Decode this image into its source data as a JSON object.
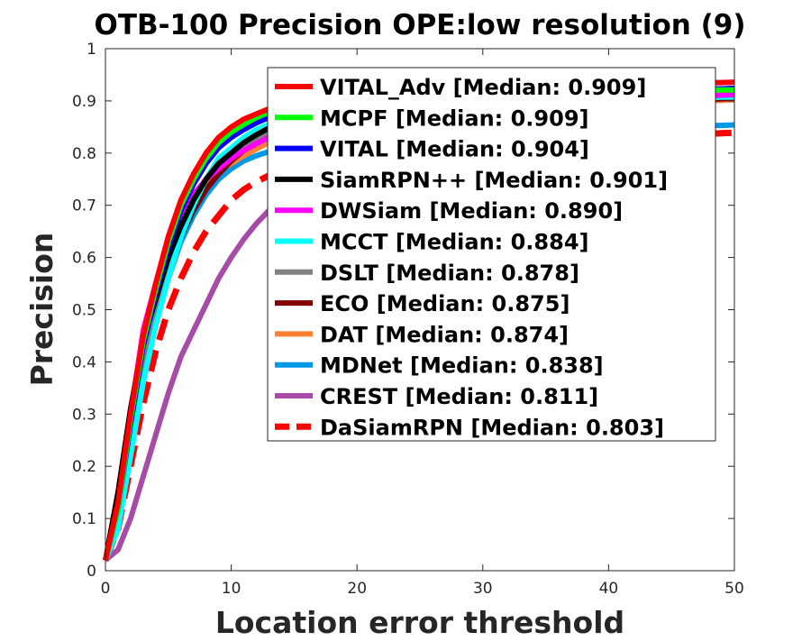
{
  "chart_data": {
    "type": "line",
    "title": "OTB-100 Precision OPE:low resolution (9)",
    "xlabel": "Location error threshold",
    "ylabel": "Precision",
    "xlim": [
      0,
      50
    ],
    "ylim": [
      0,
      1
    ],
    "xticks": [
      "0",
      "10",
      "20",
      "30",
      "40",
      "50"
    ],
    "yticks": [
      "0",
      "0.1",
      "0.2",
      "0.3",
      "0.4",
      "0.5",
      "0.6",
      "0.7",
      "0.8",
      "0.9",
      "1"
    ],
    "grid": false,
    "legend_position": "top-right",
    "x": [
      0,
      1,
      2,
      3,
      4,
      5,
      6,
      7,
      8,
      9,
      10,
      11,
      12,
      13,
      14,
      15,
      16,
      17,
      18,
      19,
      20,
      21,
      22,
      23,
      24,
      25,
      26,
      27,
      28,
      29,
      30,
      31,
      32,
      33,
      34,
      35,
      36,
      37,
      38,
      39,
      40,
      41,
      42,
      43,
      44,
      45,
      46,
      47,
      48,
      49,
      50
    ],
    "series": [
      {
        "name": "VITAL_Adv [Median: 0.909]",
        "color": "#ff0000",
        "dashed": false,
        "values": [
          0.02,
          0.13,
          0.3,
          0.45,
          0.55,
          0.64,
          0.71,
          0.76,
          0.8,
          0.83,
          0.85,
          0.865,
          0.875,
          0.885,
          0.89,
          0.895,
          0.9,
          0.903,
          0.906,
          0.908,
          0.91,
          0.912,
          0.913,
          0.914,
          0.915,
          0.916,
          0.917,
          0.918,
          0.919,
          0.92,
          0.921,
          0.922,
          0.923,
          0.924,
          0.925,
          0.926,
          0.927,
          0.928,
          0.929,
          0.93,
          0.93,
          0.931,
          0.931,
          0.932,
          0.932,
          0.933,
          0.933,
          0.934,
          0.935,
          0.935,
          0.936
        ]
      },
      {
        "name": "MCPF [Median: 0.909]",
        "color": "#00ff00",
        "dashed": false,
        "values": [
          0.02,
          0.12,
          0.29,
          0.44,
          0.54,
          0.63,
          0.7,
          0.75,
          0.79,
          0.82,
          0.84,
          0.855,
          0.868,
          0.878,
          0.885,
          0.89,
          0.895,
          0.898,
          0.901,
          0.903,
          0.905,
          0.906,
          0.907,
          0.908,
          0.909,
          0.91,
          0.911,
          0.912,
          0.912,
          0.913,
          0.913,
          0.914,
          0.914,
          0.915,
          0.915,
          0.916,
          0.916,
          0.917,
          0.917,
          0.918,
          0.918,
          0.918,
          0.919,
          0.919,
          0.919,
          0.92,
          0.92,
          0.92,
          0.921,
          0.921,
          0.921
        ]
      },
      {
        "name": "VITAL [Median: 0.904]",
        "color": "#0000ff",
        "dashed": false,
        "values": [
          0.02,
          0.12,
          0.28,
          0.43,
          0.53,
          0.62,
          0.69,
          0.74,
          0.78,
          0.81,
          0.83,
          0.845,
          0.858,
          0.868,
          0.875,
          0.88,
          0.885,
          0.889,
          0.892,
          0.895,
          0.897,
          0.899,
          0.9,
          0.901,
          0.902,
          0.903,
          0.904,
          0.905,
          0.906,
          0.907,
          0.908,
          0.909,
          0.91,
          0.911,
          0.912,
          0.913,
          0.914,
          0.915,
          0.916,
          0.917,
          0.918,
          0.919,
          0.92,
          0.92,
          0.921,
          0.921,
          0.922,
          0.922,
          0.923,
          0.923,
          0.924
        ]
      },
      {
        "name": "SiamRPN++ [Median: 0.901]",
        "color": "#000000",
        "dashed": false,
        "values": [
          0.02,
          0.15,
          0.31,
          0.44,
          0.52,
          0.6,
          0.66,
          0.71,
          0.75,
          0.78,
          0.8,
          0.82,
          0.835,
          0.848,
          0.858,
          0.866,
          0.872,
          0.877,
          0.881,
          0.885,
          0.888,
          0.891,
          0.893,
          0.895,
          0.897,
          0.899,
          0.9,
          0.901,
          0.902,
          0.903,
          0.904,
          0.905,
          0.906,
          0.907,
          0.908,
          0.909,
          0.91,
          0.911,
          0.912,
          0.913,
          0.914,
          0.915,
          0.916,
          0.917,
          0.918,
          0.919,
          0.92,
          0.921,
          0.922,
          0.923,
          0.924
        ]
      },
      {
        "name": "DWSiam [Median: 0.890]",
        "color": "#ff00ff",
        "dashed": false,
        "values": [
          0.02,
          0.12,
          0.3,
          0.46,
          0.55,
          0.63,
          0.68,
          0.72,
          0.75,
          0.77,
          0.79,
          0.805,
          0.818,
          0.83,
          0.84,
          0.848,
          0.855,
          0.861,
          0.866,
          0.87,
          0.874,
          0.877,
          0.88,
          0.882,
          0.884,
          0.886,
          0.888,
          0.889,
          0.89,
          0.891,
          0.892,
          0.893,
          0.894,
          0.895,
          0.896,
          0.897,
          0.898,
          0.899,
          0.9,
          0.901,
          0.902,
          0.903,
          0.904,
          0.905,
          0.906,
          0.907,
          0.908,
          0.909,
          0.91,
          0.911,
          0.912
        ]
      },
      {
        "name": "MCCT [Median: 0.884]",
        "color": "#00ffff",
        "dashed": false,
        "values": [
          0.02,
          0.08,
          0.22,
          0.36,
          0.47,
          0.56,
          0.64,
          0.7,
          0.75,
          0.79,
          0.81,
          0.83,
          0.845,
          0.855,
          0.862,
          0.868,
          0.873,
          0.877,
          0.88,
          0.883,
          0.885,
          0.887,
          0.889,
          0.89,
          0.891,
          0.892,
          0.893,
          0.894,
          0.895,
          0.896,
          0.897,
          0.898,
          0.899,
          0.9,
          0.9,
          0.901,
          0.901,
          0.902,
          0.902,
          0.903,
          0.903,
          0.904,
          0.904,
          0.905,
          0.905,
          0.905,
          0.906,
          0.906,
          0.906,
          0.907,
          0.907
        ]
      },
      {
        "name": "DSLT [Median: 0.878]",
        "color": "#808080",
        "dashed": false,
        "values": [
          0.02,
          0.12,
          0.27,
          0.41,
          0.51,
          0.59,
          0.66,
          0.71,
          0.75,
          0.78,
          0.8,
          0.815,
          0.828,
          0.838,
          0.846,
          0.853,
          0.859,
          0.864,
          0.868,
          0.871,
          0.874,
          0.876,
          0.878,
          0.88,
          0.882,
          0.884,
          0.885,
          0.886,
          0.887,
          0.888,
          0.889,
          0.89,
          0.891,
          0.892,
          0.893,
          0.894,
          0.895,
          0.896,
          0.897,
          0.898,
          0.899,
          0.9,
          0.901,
          0.902,
          0.903,
          0.904,
          0.905,
          0.906,
          0.907,
          0.908,
          0.909
        ]
      },
      {
        "name": "ECO [Median: 0.875]",
        "color": "#800000",
        "dashed": false,
        "values": [
          0.02,
          0.13,
          0.28,
          0.41,
          0.5,
          0.58,
          0.64,
          0.69,
          0.73,
          0.76,
          0.785,
          0.805,
          0.82,
          0.832,
          0.842,
          0.85,
          0.856,
          0.861,
          0.865,
          0.868,
          0.871,
          0.873,
          0.875,
          0.877,
          0.879,
          0.88,
          0.881,
          0.882,
          0.883,
          0.884,
          0.885,
          0.886,
          0.887,
          0.888,
          0.889,
          0.89,
          0.891,
          0.892,
          0.893,
          0.894,
          0.895,
          0.896,
          0.897,
          0.898,
          0.899,
          0.9,
          0.901,
          0.902,
          0.903,
          0.904,
          0.905
        ]
      },
      {
        "name": "DAT [Median: 0.874]",
        "color": "#ff8033",
        "dashed": false,
        "values": [
          0.02,
          0.1,
          0.25,
          0.39,
          0.49,
          0.58,
          0.65,
          0.7,
          0.74,
          0.765,
          0.78,
          0.795,
          0.808,
          0.82,
          0.83,
          0.838,
          0.845,
          0.851,
          0.856,
          0.86,
          0.864,
          0.867,
          0.87,
          0.872,
          0.874,
          0.876,
          0.878,
          0.879,
          0.88,
          0.881,
          0.882,
          0.883,
          0.884,
          0.885,
          0.886,
          0.887,
          0.888,
          0.889,
          0.89,
          0.891,
          0.892,
          0.893,
          0.894,
          0.895,
          0.896,
          0.897,
          0.898,
          0.899,
          0.9,
          0.901,
          0.902
        ]
      },
      {
        "name": "MDNet [Median: 0.838]",
        "color": "#0099e6",
        "dashed": false,
        "values": [
          0.02,
          0.09,
          0.24,
          0.38,
          0.48,
          0.56,
          0.63,
          0.68,
          0.72,
          0.75,
          0.77,
          0.785,
          0.795,
          0.803,
          0.81,
          0.815,
          0.819,
          0.822,
          0.825,
          0.828,
          0.83,
          0.832,
          0.834,
          0.835,
          0.836,
          0.837,
          0.838,
          0.839,
          0.84,
          0.841,
          0.842,
          0.843,
          0.844,
          0.845,
          0.846,
          0.846,
          0.847,
          0.847,
          0.848,
          0.848,
          0.849,
          0.849,
          0.85,
          0.85,
          0.851,
          0.851,
          0.852,
          0.852,
          0.853,
          0.853,
          0.854
        ]
      },
      {
        "name": "CREST [Median: 0.811]",
        "color": "#a64ca6",
        "dashed": false,
        "values": [
          0.02,
          0.04,
          0.1,
          0.18,
          0.26,
          0.34,
          0.41,
          0.46,
          0.51,
          0.56,
          0.6,
          0.635,
          0.665,
          0.69,
          0.71,
          0.728,
          0.743,
          0.756,
          0.768,
          0.778,
          0.787,
          0.795,
          0.802,
          0.808,
          0.814,
          0.82,
          0.825,
          0.83,
          0.835,
          0.84,
          0.845,
          0.85,
          0.855,
          0.86,
          0.865,
          0.87,
          0.875,
          0.879,
          0.883,
          0.886,
          0.889,
          0.892,
          0.895,
          0.897,
          0.899,
          0.901,
          0.903,
          0.905,
          0.906,
          0.907,
          0.908
        ]
      },
      {
        "name": "DaSiamRPN [Median: 0.803]",
        "color": "#ff0000",
        "dashed": true,
        "values": [
          0.02,
          0.08,
          0.2,
          0.32,
          0.42,
          0.5,
          0.56,
          0.61,
          0.65,
          0.68,
          0.71,
          0.73,
          0.745,
          0.757,
          0.767,
          0.775,
          0.782,
          0.788,
          0.793,
          0.797,
          0.8,
          0.803,
          0.805,
          0.807,
          0.809,
          0.811,
          0.813,
          0.815,
          0.816,
          0.818,
          0.819,
          0.82,
          0.821,
          0.822,
          0.823,
          0.824,
          0.825,
          0.826,
          0.827,
          0.828,
          0.829,
          0.83,
          0.831,
          0.832,
          0.833,
          0.834,
          0.835,
          0.836,
          0.837,
          0.838,
          0.839
        ]
      }
    ]
  }
}
